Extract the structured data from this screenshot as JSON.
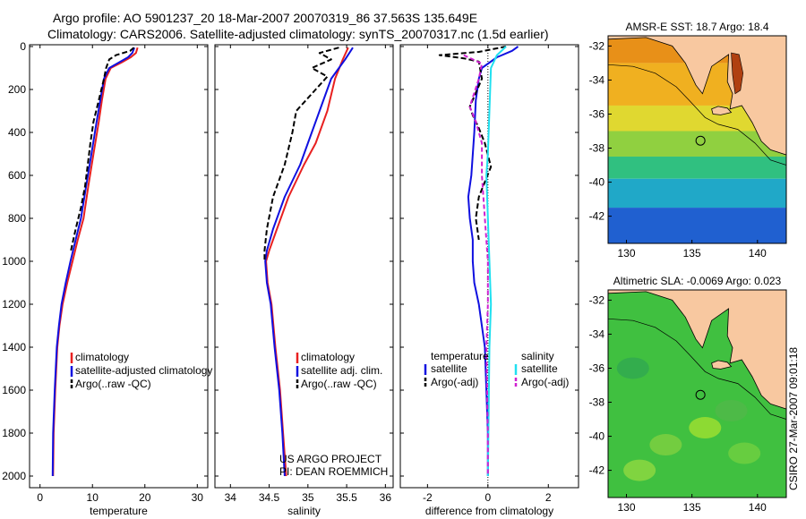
{
  "title_line1": "Argo profile: AO 5901237_20 18-Mar-2007 20070319_86 37.563S 135.649E",
  "title_line2": "Climatology: CARS2006. Satellite-adjusted climatology: synTS_20070317.nc (1.5d earlier)",
  "stamp": "CSIRO 27-Mar-2007 09:01:18",
  "colors": {
    "clim": "#e82020",
    "sat": "#1010e0",
    "argo": "#000000",
    "cyan": "#20e0f0",
    "magenta": "#d020d0",
    "land": "#f8c8a0"
  },
  "chart_data": [
    {
      "type": "line",
      "id": "temperature",
      "xlabel": "temperature",
      "ylabel": "",
      "xlim": [
        -2,
        32
      ],
      "ylim": [
        2050,
        0
      ],
      "xticks": [
        "0",
        "10",
        "20",
        "30"
      ],
      "xtick_vals": [
        0,
        10,
        20,
        30
      ],
      "yticks": [
        "0",
        "200",
        "400",
        "600",
        "800",
        "1000",
        "1200",
        "1400",
        "1600",
        "1800",
        "2000"
      ],
      "ytick_vals": [
        0,
        200,
        400,
        600,
        800,
        1000,
        1200,
        1400,
        1600,
        1800,
        2000
      ],
      "legend": [
        "climatology",
        "satellite-adjusted climatology",
        "Argo(..raw -QC)"
      ],
      "series": [
        {
          "name": "climatology",
          "color": "#e82020",
          "dash": "",
          "points": [
            [
              18.6,
              5
            ],
            [
              18.3,
              30
            ],
            [
              17.3,
              50
            ],
            [
              15.5,
              75
            ],
            [
              13.5,
              100
            ],
            [
              12.5,
              150
            ],
            [
              11.8,
              250
            ],
            [
              11.2,
              350
            ],
            [
              10.2,
              500
            ],
            [
              9.2,
              650
            ],
            [
              8.3,
              800
            ],
            [
              7.2,
              900
            ],
            [
              6.2,
              1000
            ],
            [
              5.2,
              1100
            ],
            [
              4.3,
              1200
            ],
            [
              3.7,
              1300
            ],
            [
              3.3,
              1400
            ],
            [
              2.9,
              1600
            ],
            [
              2.6,
              1800
            ],
            [
              2.5,
              2000
            ]
          ]
        },
        {
          "name": "satellite-adjusted climatology",
          "color": "#1010e0",
          "dash": "",
          "points": [
            [
              18.0,
              5
            ],
            [
              17.6,
              30
            ],
            [
              16.8,
              50
            ],
            [
              15.0,
              75
            ],
            [
              13.2,
              100
            ],
            [
              12.2,
              150
            ],
            [
              11.5,
              250
            ],
            [
              10.8,
              350
            ],
            [
              9.8,
              500
            ],
            [
              8.8,
              650
            ],
            [
              7.8,
              800
            ],
            [
              6.8,
              900
            ],
            [
              5.8,
              1000
            ],
            [
              4.9,
              1100
            ],
            [
              4.1,
              1200
            ],
            [
              3.6,
              1300
            ],
            [
              3.2,
              1400
            ],
            [
              2.8,
              1600
            ],
            [
              2.5,
              1800
            ],
            [
              2.4,
              2000
            ]
          ]
        },
        {
          "name": "Argo(..raw -QC)",
          "color": "#000000",
          "dash": "6,3",
          "points": [
            [
              17.9,
              5
            ],
            [
              17.2,
              20
            ],
            [
              14.5,
              40
            ],
            [
              13.2,
              60
            ],
            [
              12.6,
              100
            ],
            [
              12.2,
              150
            ],
            [
              11.2,
              250
            ],
            [
              10.2,
              350
            ],
            [
              9.6,
              450
            ],
            [
              9.1,
              550
            ],
            [
              8.6,
              650
            ],
            [
              7.8,
              750
            ],
            [
              6.8,
              850
            ],
            [
              5.9,
              950
            ]
          ]
        }
      ]
    },
    {
      "type": "line",
      "id": "salinity",
      "xlabel": "salinity",
      "ylabel": "",
      "xlim": [
        33.8,
        36.1
      ],
      "ylim": [
        2050,
        0
      ],
      "xticks": [
        "34",
        "34.5",
        "35",
        "35.5",
        "36"
      ],
      "xtick_vals": [
        34,
        34.5,
        35,
        35.5,
        36
      ],
      "legend": [
        "climatology",
        "satellite adj. clim.",
        "Argo(..raw -QC)"
      ],
      "series": [
        {
          "name": "climatology",
          "color": "#e82020",
          "dash": "",
          "points": [
            [
              35.52,
              5
            ],
            [
              35.45,
              60
            ],
            [
              35.35,
              150
            ],
            [
              35.25,
              300
            ],
            [
              35.1,
              450
            ],
            [
              34.95,
              550
            ],
            [
              34.75,
              700
            ],
            [
              34.6,
              850
            ],
            [
              34.5,
              950
            ],
            [
              34.46,
              1000
            ],
            [
              34.48,
              1100
            ],
            [
              34.53,
              1200
            ],
            [
              34.58,
              1400
            ],
            [
              34.64,
              1600
            ],
            [
              34.68,
              1800
            ],
            [
              34.72,
              2000
            ]
          ]
        },
        {
          "name": "satellite adj. clim.",
          "color": "#1010e0",
          "dash": "",
          "points": [
            [
              35.58,
              5
            ],
            [
              35.48,
              60
            ],
            [
              35.3,
              150
            ],
            [
              35.15,
              300
            ],
            [
              35.0,
              450
            ],
            [
              34.9,
              550
            ],
            [
              34.7,
              700
            ],
            [
              34.55,
              850
            ],
            [
              34.47,
              950
            ],
            [
              34.45,
              1000
            ],
            [
              34.47,
              1100
            ],
            [
              34.52,
              1200
            ],
            [
              34.57,
              1400
            ],
            [
              34.63,
              1600
            ],
            [
              34.67,
              1800
            ],
            [
              34.7,
              2000
            ]
          ]
        },
        {
          "name": "Argo(..raw -QC)",
          "color": "#000000",
          "dash": "6,3",
          "points": [
            [
              35.4,
              5
            ],
            [
              35.15,
              30
            ],
            [
              35.3,
              60
            ],
            [
              35.05,
              100
            ],
            [
              35.25,
              140
            ],
            [
              35.1,
              200
            ],
            [
              34.85,
              300
            ],
            [
              34.8,
              400
            ],
            [
              34.7,
              550
            ],
            [
              34.55,
              700
            ],
            [
              34.47,
              850
            ],
            [
              34.44,
              950
            ],
            [
              34.44,
              1000
            ]
          ]
        }
      ]
    },
    {
      "type": "line",
      "id": "difference",
      "xlabel": "difference from climatology",
      "ylabel": "",
      "xlim": [
        -2.9,
        3.0
      ],
      "ylim": [
        2050,
        0
      ],
      "xticks": [
        "-2",
        "0",
        "2"
      ],
      "xtick_vals": [
        -2,
        0,
        2
      ],
      "legend_groups": [
        "temperature",
        "salinity"
      ],
      "legend": [
        "satellite",
        "Argo(-adj)",
        "satellite",
        "Argo(-adj)"
      ],
      "series": [
        {
          "name": "temperature satellite",
          "color": "#1010e0",
          "dash": "",
          "points": [
            [
              1.0,
              0
            ],
            [
              0.8,
              20
            ],
            [
              0.3,
              50
            ],
            [
              -0.2,
              100
            ],
            [
              -0.3,
              150
            ],
            [
              -0.4,
              250
            ],
            [
              -0.45,
              400
            ],
            [
              -0.55,
              600
            ],
            [
              -0.65,
              700
            ],
            [
              -0.6,
              800
            ],
            [
              -0.5,
              900
            ],
            [
              -0.5,
              1000
            ],
            [
              -0.45,
              1100
            ],
            [
              -0.3,
              1200
            ],
            [
              -0.1,
              1400
            ],
            [
              -0.05,
              1600
            ],
            [
              0.0,
              1800
            ],
            [
              0.0,
              2000
            ]
          ]
        },
        {
          "name": "temperature Argo(-adj)",
          "color": "#000000",
          "dash": "6,3",
          "points": [
            [
              0.6,
              0
            ],
            [
              -0.3,
              25
            ],
            [
              -1.6,
              40
            ],
            [
              -0.8,
              55
            ],
            [
              -0.3,
              70
            ],
            [
              -0.2,
              150
            ],
            [
              -0.6,
              280
            ],
            [
              -0.5,
              320
            ],
            [
              -0.3,
              380
            ],
            [
              -0.1,
              450
            ],
            [
              0.1,
              560
            ],
            [
              -0.3,
              700
            ],
            [
              -0.4,
              800
            ],
            [
              -0.3,
              900
            ]
          ]
        },
        {
          "name": "salinity satellite",
          "color": "#20e0f0",
          "dash": "",
          "points": [
            [
              0.6,
              0
            ],
            [
              0.3,
              40
            ],
            [
              0.1,
              100
            ],
            [
              0.05,
              300
            ],
            [
              0.0,
              500
            ],
            [
              -0.05,
              600
            ],
            [
              0.0,
              800
            ],
            [
              0.05,
              1000
            ],
            [
              0.1,
              1200
            ],
            [
              0.05,
              1400
            ],
            [
              0.0,
              2000
            ]
          ]
        },
        {
          "name": "salinity Argo(-adj)",
          "color": "#d020d0",
          "dash": "5,3",
          "points": [
            [
              -0.8,
              40
            ],
            [
              -0.2,
              80
            ],
            [
              -0.3,
              150
            ],
            [
              -0.6,
              280
            ],
            [
              -0.4,
              350
            ],
            [
              -0.2,
              450
            ],
            [
              -0.2,
              600
            ],
            [
              -0.1,
              800
            ],
            [
              0.0,
              1000
            ],
            [
              0.0,
              1200
            ],
            [
              -0.05,
              1400
            ],
            [
              0.0,
              1800
            ],
            [
              0.0,
              2000
            ]
          ]
        }
      ]
    },
    {
      "type": "heatmap",
      "id": "sst-map",
      "title": "AMSR-E SST: 18.7 Argo: 18.4",
      "xlim": [
        128.6,
        142.2
      ],
      "ylim": [
        -43.6,
        -31.4
      ],
      "xticks": [
        "130",
        "135",
        "140"
      ],
      "xtick_vals": [
        130,
        135,
        140
      ],
      "yticks": [
        "-32",
        "-34",
        "-36",
        "-38",
        "-40",
        "-42"
      ],
      "ytick_vals": [
        -32,
        -34,
        -36,
        -38,
        -40,
        -42
      ],
      "marker": [
        135.649,
        -37.563
      ],
      "color_bands": [
        {
          "lat_top": -31.4,
          "lat_bottom": -33.0,
          "color": "#e89018"
        },
        {
          "lat_top": -33.0,
          "lat_bottom": -35.5,
          "color": "#f0b020"
        },
        {
          "lat_top": -35.5,
          "lat_bottom": -37.0,
          "color": "#e0d830"
        },
        {
          "lat_top": -37.0,
          "lat_bottom": -38.5,
          "color": "#90d040"
        },
        {
          "lat_top": -38.5,
          "lat_bottom": -39.8,
          "color": "#30c080"
        },
        {
          "lat_top": -39.8,
          "lat_bottom": -41.5,
          "color": "#20a8c8"
        },
        {
          "lat_top": -41.5,
          "lat_bottom": -43.6,
          "color": "#2060d0"
        }
      ]
    },
    {
      "type": "heatmap",
      "id": "sla-map",
      "title": "Altimetric SLA: -0.0069 Argo: 0.023",
      "xlim": [
        128.6,
        142.2
      ],
      "ylim": [
        -43.6,
        -31.4
      ],
      "xticks": [
        "130",
        "135",
        "140"
      ],
      "xtick_vals": [
        130,
        135,
        140
      ],
      "yticks": [
        "-32",
        "-34",
        "-36",
        "-38",
        "-40",
        "-42"
      ],
      "ytick_vals": [
        -32,
        -34,
        -36,
        -38,
        -40,
        -42
      ],
      "marker": [
        135.649,
        -37.563
      ],
      "base_color": "#40c040"
    }
  ],
  "coast_points": [
    [
      128.6,
      -31.6
    ],
    [
      131.5,
      -31.5
    ],
    [
      133.5,
      -32.0
    ],
    [
      134.5,
      -33.0
    ],
    [
      135.3,
      -34.3
    ],
    [
      135.8,
      -34.8
    ],
    [
      136.5,
      -33.2
    ],
    [
      137.8,
      -32.5
    ],
    [
      137.7,
      -34.1
    ],
    [
      138.1,
      -34.8
    ],
    [
      137.9,
      -35.7
    ],
    [
      138.8,
      -35.5
    ],
    [
      139.6,
      -36.5
    ],
    [
      140.3,
      -37.6
    ],
    [
      141.0,
      -38.1
    ],
    [
      142.2,
      -38.4
    ]
  ],
  "gulf_points": [
    [
      138.0,
      -32.4
    ],
    [
      138.6,
      -32.5
    ],
    [
      138.9,
      -33.6
    ],
    [
      138.7,
      -34.6
    ],
    [
      138.3,
      -34.8
    ],
    [
      138.1,
      -33.7
    ]
  ],
  "island_points": [
    [
      136.5,
      -35.7
    ],
    [
      137.0,
      -35.55
    ],
    [
      137.7,
      -35.65
    ],
    [
      138.0,
      -35.9
    ],
    [
      137.2,
      -36.05
    ],
    [
      136.6,
      -36.0
    ]
  ],
  "shelf_points": [
    [
      128.6,
      -33.1
    ],
    [
      130.5,
      -33.2
    ],
    [
      132.2,
      -33.6
    ],
    [
      133.8,
      -34.4
    ],
    [
      134.8,
      -35.2
    ],
    [
      136.0,
      -36.2
    ],
    [
      137.0,
      -36.6
    ],
    [
      138.5,
      -36.9
    ],
    [
      139.8,
      -37.7
    ],
    [
      141.0,
      -38.7
    ],
    [
      142.2,
      -39.0
    ]
  ],
  "footer": {
    "line1": "US ARGO PROJECT",
    "line2": "PI: DEAN ROEMMICH"
  }
}
